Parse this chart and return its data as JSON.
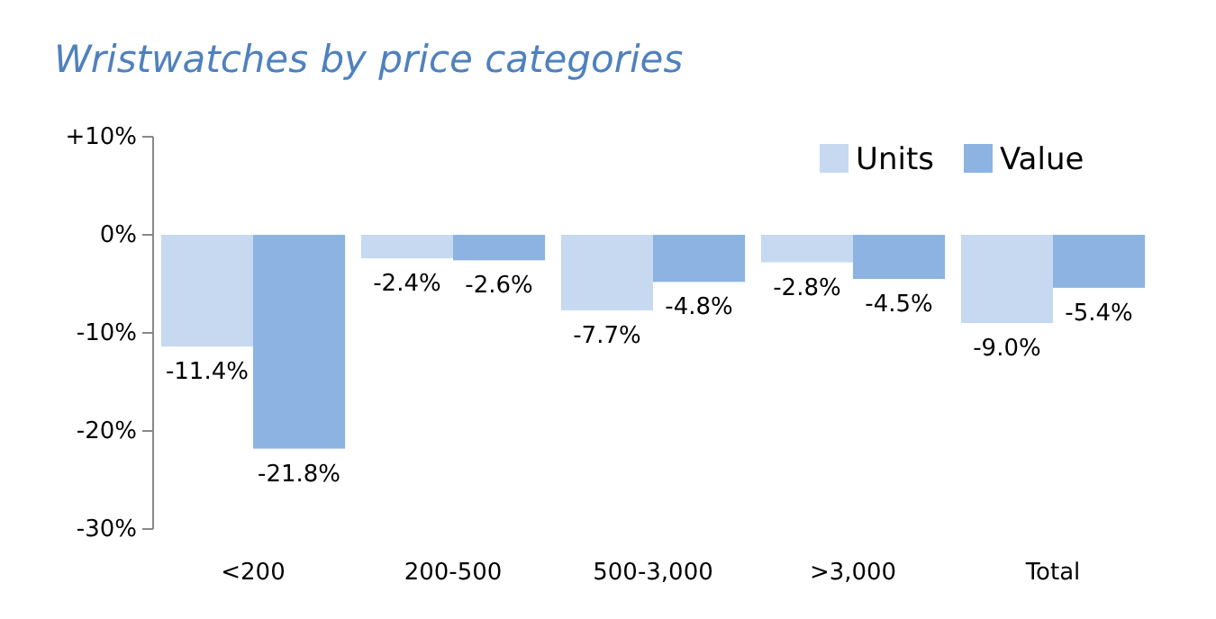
{
  "chart_data": {
    "type": "bar",
    "title": "Wristwatches by price categories",
    "categories": [
      "<200",
      "200-500",
      "500-3,000",
      ">3,000",
      "Total"
    ],
    "series": [
      {
        "name": "Units",
        "color": "#c6d9f1",
        "values": [
          -11.4,
          -2.4,
          -7.7,
          -2.8,
          -9.0
        ],
        "value_labels": [
          "-11.4%",
          "-2.4%",
          "-7.7%",
          "-2.8%",
          "-9.0%"
        ]
      },
      {
        "name": "Value",
        "color": "#8db3e2",
        "values": [
          -21.8,
          -2.6,
          -4.8,
          -4.5,
          -5.4
        ],
        "value_labels": [
          "-21.8%",
          "-2.6%",
          "-4.8%",
          "-4.5%",
          "-5.4%"
        ]
      }
    ],
    "ylim": [
      -30,
      10
    ],
    "yticks": [
      {
        "value": -30,
        "label": "-30%"
      },
      {
        "value": -20,
        "label": "-20%"
      },
      {
        "value": -10,
        "label": "-10%"
      },
      {
        "value": 0,
        "label": "0%"
      },
      {
        "value": 10,
        "label": "+10%"
      }
    ],
    "legend": "top right",
    "grid": false
  }
}
